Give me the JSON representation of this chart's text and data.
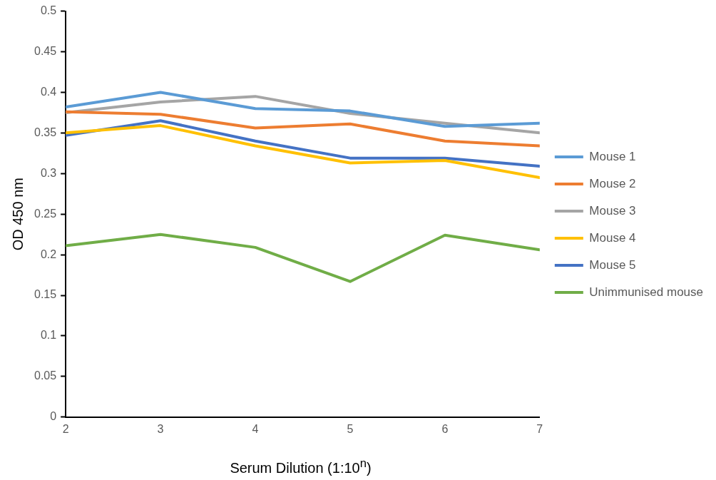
{
  "chart_data": {
    "type": "line",
    "xlabel": "Serum Dilution (1:10$^{n}$)",
    "ylabel": "OD 450 nm",
    "x": [
      2,
      3,
      4,
      5,
      6,
      7
    ],
    "xlim": [
      2,
      7
    ],
    "xticks": [
      2,
      3,
      4,
      5,
      6,
      7
    ],
    "ylim": [
      0,
      0.5
    ],
    "yticks": [
      0,
      0.05,
      0.1,
      0.15,
      0.2,
      0.25,
      0.3,
      0.35,
      0.4,
      0.45,
      0.5
    ],
    "grid": false,
    "legend": "right",
    "marker": "none",
    "line_style": "solid",
    "series": [
      {
        "name": "Mouse 1",
        "color": "#5b9bd5",
        "values": [
          0.382,
          0.4,
          0.38,
          0.377,
          0.358,
          0.362
        ]
      },
      {
        "name": "Mouse 2",
        "color": "#ed7d31",
        "values": [
          0.376,
          0.373,
          0.356,
          0.361,
          0.34,
          0.334
        ]
      },
      {
        "name": "Mouse 3",
        "color": "#a5a5a5",
        "values": [
          0.375,
          0.388,
          0.395,
          0.374,
          0.362,
          0.35
        ]
      },
      {
        "name": "Mouse 4",
        "color": "#ffc000",
        "values": [
          0.35,
          0.359,
          0.334,
          0.313,
          0.316,
          0.295
        ]
      },
      {
        "name": "Mouse 5",
        "color": "#4472c4",
        "values": [
          0.347,
          0.365,
          0.34,
          0.319,
          0.319,
          0.309
        ]
      },
      {
        "name": "Unimmunised mouse",
        "color": "#70ad47",
        "values": [
          0.211,
          0.225,
          0.209,
          0.167,
          0.224,
          0.206
        ]
      }
    ]
  }
}
